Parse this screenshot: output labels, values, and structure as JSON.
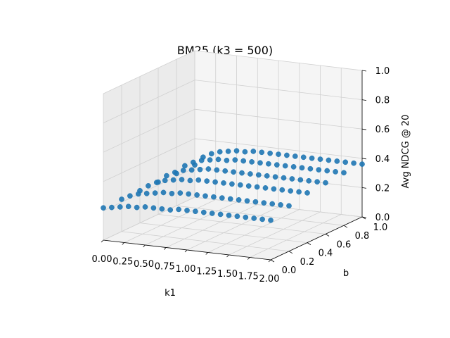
{
  "chart_data": {
    "type": "scatter",
    "projection": "3d",
    "title": "BM25 (k3 = 500)",
    "xlabel": "k1",
    "ylabel": "b",
    "zlabel": "Avg NDCG @ 20",
    "xlim": [
      0.0,
      2.0
    ],
    "ylim": [
      0.0,
      1.0
    ],
    "zlim": [
      0.0,
      1.0
    ],
    "xticks": [
      "0.00",
      "0.25",
      "0.50",
      "0.75",
      "1.00",
      "1.25",
      "1.50",
      "1.75",
      "2.00"
    ],
    "yticks": [
      "0.0",
      "0.2",
      "0.4",
      "0.6",
      "0.8",
      "1.0"
    ],
    "zticks": [
      "0.0",
      "0.2",
      "0.4",
      "0.6",
      "0.8",
      "1.0"
    ],
    "grid": true,
    "marker_color": "#1f77b4",
    "k1_values": [
      0.0,
      0.1,
      0.2,
      0.3,
      0.4,
      0.5,
      0.6,
      0.7,
      0.8,
      0.9,
      1.0,
      1.1,
      1.2,
      1.3,
      1.4,
      1.5,
      1.6,
      1.7,
      1.8,
      1.9,
      2.0
    ],
    "b_values": [
      0.0,
      0.2,
      0.4,
      0.6,
      0.8,
      1.0
    ],
    "ndcg_values": [
      [
        0.22,
        0.23,
        0.24,
        0.25,
        0.25,
        0.26,
        0.26,
        0.26,
        0.26,
        0.27,
        0.27,
        0.27,
        0.27,
        0.27,
        0.27,
        0.27,
        0.27,
        0.27,
        0.27,
        0.27,
        0.27
      ],
      [
        0.22,
        0.25,
        0.27,
        0.28,
        0.29,
        0.3,
        0.3,
        0.31,
        0.31,
        0.31,
        0.31,
        0.31,
        0.31,
        0.31,
        0.31,
        0.31,
        0.31,
        0.31,
        0.31,
        0.31,
        0.31
      ],
      [
        0.22,
        0.26,
        0.29,
        0.31,
        0.32,
        0.33,
        0.33,
        0.34,
        0.34,
        0.34,
        0.34,
        0.34,
        0.34,
        0.34,
        0.34,
        0.34,
        0.34,
        0.34,
        0.34,
        0.34,
        0.34
      ],
      [
        0.22,
        0.27,
        0.3,
        0.32,
        0.33,
        0.34,
        0.35,
        0.35,
        0.35,
        0.35,
        0.35,
        0.35,
        0.35,
        0.35,
        0.35,
        0.35,
        0.35,
        0.35,
        0.35,
        0.35,
        0.35
      ],
      [
        0.22,
        0.28,
        0.31,
        0.33,
        0.34,
        0.35,
        0.35,
        0.36,
        0.36,
        0.36,
        0.36,
        0.36,
        0.36,
        0.36,
        0.36,
        0.36,
        0.36,
        0.36,
        0.36,
        0.36,
        0.36
      ],
      [
        0.22,
        0.28,
        0.31,
        0.33,
        0.34,
        0.35,
        0.35,
        0.36,
        0.36,
        0.36,
        0.36,
        0.36,
        0.36,
        0.36,
        0.36,
        0.36,
        0.36,
        0.36,
        0.36,
        0.36,
        0.36
      ]
    ]
  }
}
